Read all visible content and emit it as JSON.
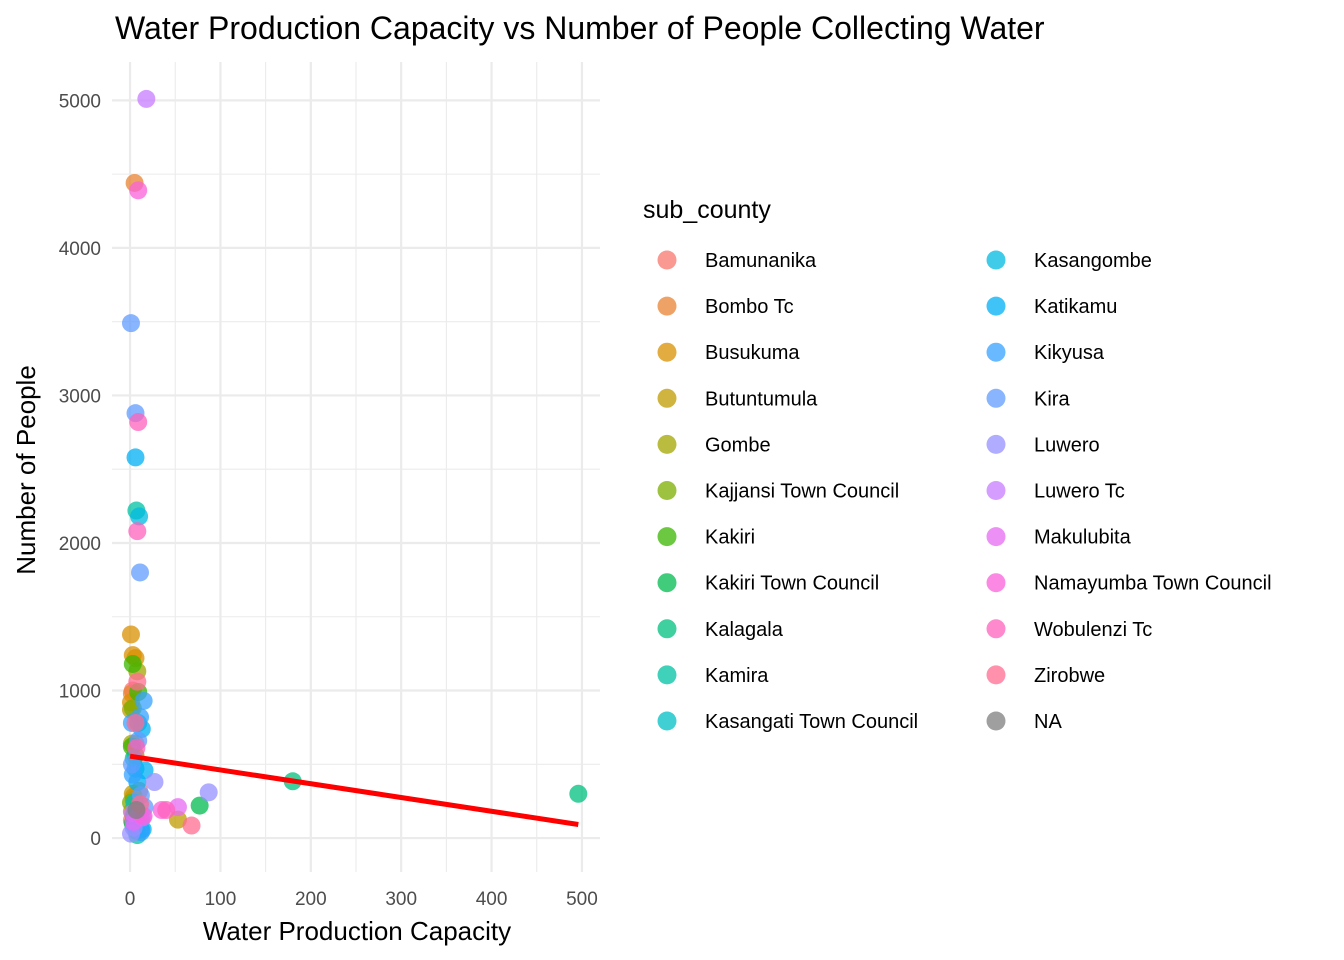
{
  "chart_data": {
    "type": "scatter",
    "title": "Water Production Capacity vs Number of People Collecting Water",
    "xlabel": "Water Production Capacity",
    "ylabel": "Number of People",
    "xlim": [
      -20,
      520
    ],
    "ylim": [
      -230,
      5260
    ],
    "x_ticks": [
      0,
      100,
      200,
      300,
      400,
      500
    ],
    "y_ticks": [
      0,
      1000,
      2000,
      3000,
      4000,
      5000
    ],
    "grid": true,
    "legend_title": "sub_county",
    "legend_position": "right",
    "legend": [
      {
        "name": "Bamunanika",
        "color": "#F8766D"
      },
      {
        "name": "Bombo Tc",
        "color": "#EA8331"
      },
      {
        "name": "Busukuma",
        "color": "#D89000"
      },
      {
        "name": "Butuntumula",
        "color": "#C09B00"
      },
      {
        "name": "Gombe",
        "color": "#A3A500"
      },
      {
        "name": "Kajjansi Town Council",
        "color": "#7CAE00"
      },
      {
        "name": "Kakiri",
        "color": "#39B600"
      },
      {
        "name": "Kakiri Town Council",
        "color": "#00BB4E"
      },
      {
        "name": "Kalagala",
        "color": "#00BF7D"
      },
      {
        "name": "Kamira",
        "color": "#00C1A3"
      },
      {
        "name": "Kasangati Town Council",
        "color": "#00BFC4"
      },
      {
        "name": "Kasangombe",
        "color": "#00BAE0"
      },
      {
        "name": "Katikamu",
        "color": "#00B0F6"
      },
      {
        "name": "Kikyusa",
        "color": "#35A2FF"
      },
      {
        "name": "Kira",
        "color": "#619CFF"
      },
      {
        "name": "Luwero",
        "color": "#9590FF"
      },
      {
        "name": "Luwero Tc",
        "color": "#C77CFF"
      },
      {
        "name": "Makulubita",
        "color": "#E76BF3"
      },
      {
        "name": "Namayumba Town Council",
        "color": "#FA62DB"
      },
      {
        "name": "Wobulenzi Tc",
        "color": "#FF62BC"
      },
      {
        "name": "Zirobwe",
        "color": "#FF6C91"
      },
      {
        "name": "NA",
        "color": "#7F7F7F"
      }
    ],
    "series": [
      {
        "name": "Bamunanika",
        "points": [
          [
            3,
            1000
          ],
          [
            6,
            640
          ],
          [
            2,
            120
          ],
          [
            10,
            320
          ]
        ]
      },
      {
        "name": "Bombo Tc",
        "points": [
          [
            5,
            4440
          ],
          [
            2,
            980
          ],
          [
            4,
            280
          ]
        ]
      },
      {
        "name": "Busukuma",
        "points": [
          [
            1,
            1380
          ],
          [
            3,
            1240
          ],
          [
            6,
            1220
          ],
          [
            1,
            920
          ],
          [
            4,
            260
          ],
          [
            2,
            180
          ]
        ]
      },
      {
        "name": "Butuntumula",
        "points": [
          [
            1,
            870
          ],
          [
            53,
            125
          ],
          [
            3,
            300
          ],
          [
            7,
            200
          ]
        ]
      },
      {
        "name": "Gombe",
        "points": [
          [
            8,
            1130
          ],
          [
            2,
            640
          ],
          [
            5,
            180
          ]
        ]
      },
      {
        "name": "Kajjansi Town Council",
        "points": [
          [
            3,
            880
          ],
          [
            6,
            560
          ],
          [
            1,
            240
          ]
        ]
      },
      {
        "name": "Kakiri",
        "points": [
          [
            3,
            1180
          ],
          [
            9,
            990
          ],
          [
            2,
            620
          ],
          [
            4,
            150
          ]
        ]
      },
      {
        "name": "Kakiri Town Council",
        "points": [
          [
            77,
            220
          ],
          [
            3,
            100
          ],
          [
            7,
            50
          ]
        ]
      },
      {
        "name": "Kalagala",
        "points": [
          [
            496,
            300
          ],
          [
            180,
            385
          ],
          [
            6,
            160
          ]
        ]
      },
      {
        "name": "Kamira",
        "points": [
          [
            7,
            2220
          ],
          [
            4,
            540
          ],
          [
            8,
            20
          ]
        ]
      },
      {
        "name": "Kasangati Town Council",
        "points": [
          [
            9,
            780
          ],
          [
            5,
            240
          ],
          [
            12,
            60
          ]
        ]
      },
      {
        "name": "Kasangombe",
        "points": [
          [
            10,
            2180
          ],
          [
            6,
            470
          ],
          [
            12,
            130
          ]
        ]
      },
      {
        "name": "Katikamu",
        "points": [
          [
            6,
            2580
          ],
          [
            13,
            740
          ],
          [
            8,
            380
          ],
          [
            16,
            460
          ],
          [
            5,
            90
          ],
          [
            14,
            60
          ]
        ]
      },
      {
        "name": "Kikyusa",
        "points": [
          [
            15,
            930
          ],
          [
            2,
            780
          ],
          [
            11,
            820
          ],
          [
            3,
            430
          ],
          [
            8,
            110
          ],
          [
            12,
            40
          ]
        ]
      },
      {
        "name": "Kira",
        "points": [
          [
            1,
            3490
          ],
          [
            6,
            2880
          ],
          [
            11,
            1800
          ],
          [
            2,
            500
          ],
          [
            9,
            660
          ],
          [
            12,
            290
          ],
          [
            16,
            210
          ]
        ]
      },
      {
        "name": "Luwero",
        "points": [
          [
            87,
            310
          ],
          [
            27,
            380
          ],
          [
            1,
            30
          ],
          [
            4,
            70
          ]
        ]
      },
      {
        "name": "Luwero Tc",
        "points": [
          [
            18,
            5010
          ],
          [
            3,
            170
          ],
          [
            14,
            140
          ]
        ]
      },
      {
        "name": "Makulubita",
        "points": [
          [
            53,
            210
          ],
          [
            10,
            160
          ],
          [
            4,
            110
          ]
        ]
      },
      {
        "name": "Namayumba Town Council",
        "points": [
          [
            9,
            4390
          ],
          [
            35,
            190
          ],
          [
            15,
            150
          ]
        ]
      },
      {
        "name": "Wobulenzi Tc",
        "points": [
          [
            9,
            2820
          ],
          [
            8,
            2080
          ],
          [
            7,
            610
          ],
          [
            40,
            190
          ]
        ]
      },
      {
        "name": "Zirobwe",
        "points": [
          [
            8,
            1060
          ],
          [
            6,
            780
          ],
          [
            68,
            85
          ],
          [
            11,
            230
          ]
        ]
      },
      {
        "name": "NA",
        "points": [
          [
            7,
            190
          ]
        ]
      }
    ],
    "trendline": {
      "color": "#FF0000",
      "x": [
        0,
        496
      ],
      "y": [
        555,
        92
      ]
    }
  }
}
